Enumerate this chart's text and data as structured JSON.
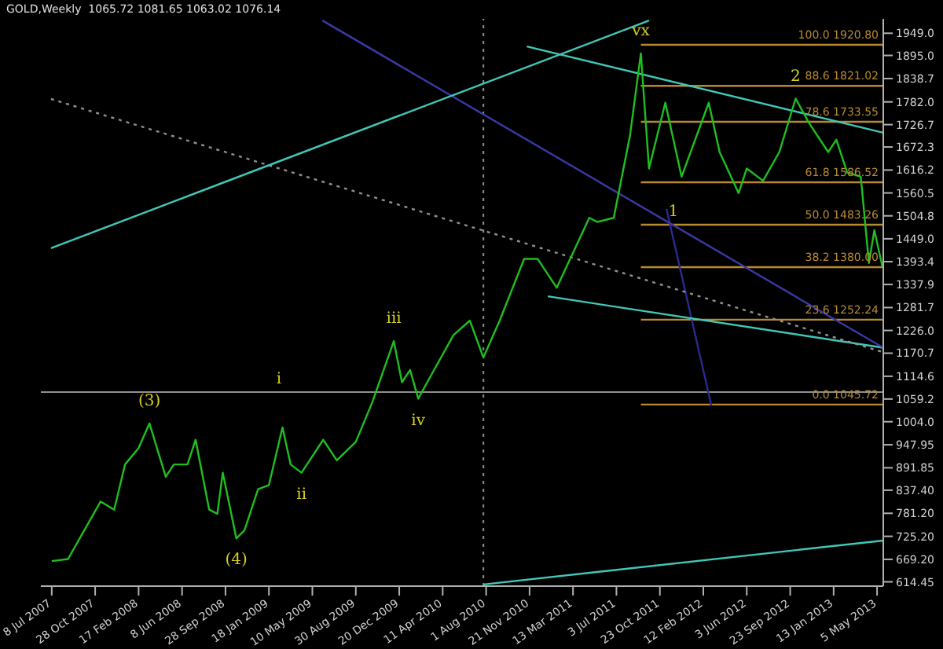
{
  "chart_data": {
    "type": "line",
    "title": "GOLD,Weekly  1065.72 1081.65 1063.02 1076.14",
    "xlim": [
      "2007-06-10",
      "2013-05-21"
    ],
    "ylim": [
      604,
      1984
    ],
    "xticks": [
      {
        "value": "2007-07-08",
        "label": "8 Jul 2007"
      },
      {
        "value": "2007-10-28",
        "label": "28 Oct 2007"
      },
      {
        "value": "2008-02-17",
        "label": "17 Feb 2008"
      },
      {
        "value": "2008-06-08",
        "label": "8 Jun 2008"
      },
      {
        "value": "2008-09-28",
        "label": "28 Sep 2008"
      },
      {
        "value": "2009-01-18",
        "label": "18 Jan 2009"
      },
      {
        "value": "2009-05-10",
        "label": "10 May 2009"
      },
      {
        "value": "2009-08-30",
        "label": "30 Aug 2009"
      },
      {
        "value": "2009-12-20",
        "label": "20 Dec 2009"
      },
      {
        "value": "2010-04-11",
        "label": "11 Apr 2010"
      },
      {
        "value": "2010-08-01",
        "label": "1 Aug 2010"
      },
      {
        "value": "2010-11-21",
        "label": "21 Nov 2010"
      },
      {
        "value": "2011-03-13",
        "label": "13 Mar 2011"
      },
      {
        "value": "2011-07-03",
        "label": "3 Jul 2011"
      },
      {
        "value": "2011-10-23",
        "label": "23 Oct 2011"
      },
      {
        "value": "2012-02-12",
        "label": "12 Feb 2012"
      },
      {
        "value": "2012-06-03",
        "label": "3 Jun 2012"
      },
      {
        "value": "2012-09-23",
        "label": "23 Sep 2012"
      },
      {
        "value": "2013-01-13",
        "label": "13 Jan 2013"
      },
      {
        "value": "2013-05-05",
        "label": "5 May 2013"
      }
    ],
    "yticks": [
      {
        "value": 614.45,
        "label": "614.45"
      },
      {
        "value": 669.2,
        "label": "669.20"
      },
      {
        "value": 725.2,
        "label": "725.20"
      },
      {
        "value": 781.2,
        "label": "781.20"
      },
      {
        "value": 837.4,
        "label": "837.40"
      },
      {
        "value": 891.85,
        "label": "891.85"
      },
      {
        "value": 947.95,
        "label": "947.95"
      },
      {
        "value": 1004,
        "label": "1004.0"
      },
      {
        "value": 1059.2,
        "label": "1059.2"
      },
      {
        "value": 1114.6,
        "label": "1114.6"
      },
      {
        "value": 1170.7,
        "label": "1170.7"
      },
      {
        "value": 1226,
        "label": "1226.0"
      },
      {
        "value": 1281.7,
        "label": "1281.7"
      },
      {
        "value": 1337.9,
        "label": "1337.9"
      },
      {
        "value": 1393.4,
        "label": "1393.4"
      },
      {
        "value": 1449,
        "label": "1449.0"
      },
      {
        "value": 1504.8,
        "label": "1504.8"
      },
      {
        "value": 1560.5,
        "label": "1560.5"
      },
      {
        "value": 1616.2,
        "label": "1616.2"
      },
      {
        "value": 1672.3,
        "label": "1672.3"
      },
      {
        "value": 1726.7,
        "label": "1726.7"
      },
      {
        "value": 1782,
        "label": "1782.0"
      },
      {
        "value": 1838.7,
        "label": "1838.7"
      },
      {
        "value": 1895,
        "label": "1895.0"
      },
      {
        "value": 1949,
        "label": "1949.0"
      }
    ],
    "series": [
      {
        "color": "#1fbf1f",
        "x": [
          "2007-07-08",
          "2007-08-19",
          "2007-09-30",
          "2007-11-11",
          "2007-12-16",
          "2008-01-13",
          "2008-02-17",
          "2008-03-16",
          "2008-04-27",
          "2008-05-18",
          "2008-06-22",
          "2008-07-13",
          "2008-08-17",
          "2008-09-07",
          "2008-09-21",
          "2008-10-26",
          "2008-11-16",
          "2008-12-21",
          "2009-01-18",
          "2009-02-22",
          "2009-03-15",
          "2009-04-12",
          "2009-06-07",
          "2009-07-12",
          "2009-08-30",
          "2009-10-11",
          "2009-12-06",
          "2009-12-27",
          "2010-01-17",
          "2010-02-07",
          "2010-03-14",
          "2010-05-09",
          "2010-06-20",
          "2010-07-25",
          "2010-09-05",
          "2010-11-07",
          "2010-12-12",
          "2011-01-30",
          "2011-04-24",
          "2011-05-15",
          "2011-06-26",
          "2011-08-07",
          "2011-09-04",
          "2011-09-25",
          "2011-11-06",
          "2011-12-18",
          "2012-02-26",
          "2012-03-25",
          "2012-05-13",
          "2012-06-03",
          "2012-07-15",
          "2012-08-26",
          "2012-10-07",
          "2012-11-11",
          "2012-12-30",
          "2013-01-20",
          "2013-02-17",
          "2013-03-24",
          "2013-04-14",
          "2013-04-28",
          "2013-05-19"
        ],
        "values": [
          665,
          670,
          740,
          810,
          790,
          900,
          940,
          1000,
          870,
          900,
          900,
          960,
          790,
          780,
          880,
          720,
          740,
          840,
          850,
          990,
          900,
          880,
          960,
          910,
          955,
          1050,
          1200,
          1100,
          1130,
          1060,
          1120,
          1215,
          1250,
          1160,
          1250,
          1400,
          1400,
          1330,
          1500,
          1490,
          1500,
          1700,
          1900,
          1620,
          1780,
          1600,
          1780,
          1660,
          1560,
          1620,
          1590,
          1660,
          1790,
          1730,
          1660,
          1690,
          1610,
          1600,
          1390,
          1470,
          1380
        ]
      },
      {
        "color": "#40c8b8",
        "x": [
          "2007-07-06",
          "2011-09-25"
        ],
        "values": [
          1426,
          1980
        ]
      },
      {
        "color": "#40c8b8",
        "x": [
          "2010-11-14",
          "2013-05-21"
        ],
        "values": [
          1917,
          1707
        ]
      },
      {
        "color": "#3a3aa8",
        "x": [
          "2009-06-05",
          "2013-05-21"
        ],
        "values": [
          1980,
          1184
        ]
      },
      {
        "color": "#909090",
        "line_style": "dotted",
        "x": [
          "2007-07-06",
          "2013-05-21"
        ],
        "values": [
          1789,
          1173
        ]
      },
      {
        "color": "#40c8b8",
        "x": [
          "2011-01-07",
          "2013-05-21"
        ],
        "values": [
          1309,
          1184
        ]
      },
      {
        "color": "#40c8b8",
        "x": [
          "2010-07-25",
          "2013-05-21"
        ],
        "values": [
          608,
          715
        ]
      },
      {
        "color": "#2a2a90",
        "x": [
          "2011-11-09",
          "2012-03-04"
        ],
        "values": [
          1522,
          1042
        ]
      },
      {
        "name": "100.0  1920.80",
        "color": "#b88a30",
        "x": [
          "2011-09-04",
          "2013-05-21"
        ],
        "values": [
          1920.8,
          1920.8
        ]
      },
      {
        "name": "88.6  1821.02",
        "color": "#b88a30",
        "x": [
          "2011-09-04",
          "2013-05-21"
        ],
        "values": [
          1821.02,
          1821.02
        ]
      },
      {
        "name": "78.6  1733.55",
        "color": "#b88a30",
        "x": [
          "2011-09-04",
          "2013-05-21"
        ],
        "values": [
          1733.55,
          1733.55
        ]
      },
      {
        "name": "61.8  1586.52",
        "color": "#b88a30",
        "x": [
          "2011-09-04",
          "2013-05-21"
        ],
        "values": [
          1586.52,
          1586.52
        ]
      },
      {
        "name": "50.0  1483.26",
        "color": "#b88a30",
        "x": [
          "2011-09-04",
          "2013-05-21"
        ],
        "values": [
          1483.26,
          1483.26
        ]
      },
      {
        "name": "38.2  1380.00",
        "color": "#b88a30",
        "x": [
          "2011-09-04",
          "2013-05-21"
        ],
        "values": [
          1380,
          1380
        ]
      },
      {
        "name": "23.6  1252.24",
        "color": "#b88a30",
        "x": [
          "2011-09-04",
          "2013-05-21"
        ],
        "values": [
          1252.24,
          1252.24
        ]
      },
      {
        "name": "0.0  1045.72",
        "color": "#b88a30",
        "x": [
          "2011-09-04",
          "2013-05-21"
        ],
        "values": [
          1045.72,
          1045.72
        ]
      }
    ],
    "ref_lines": [
      {
        "axis": "x",
        "value": "2010-07-25",
        "color": "#909090",
        "line_style": "dotted"
      },
      {
        "axis": "y",
        "value": 1076.14,
        "color": "#909090"
      }
    ],
    "annotations": [
      {
        "text": "(3)",
        "x": "2008-03-16",
        "y": 1000
      },
      {
        "text": "(4)",
        "x": "2008-10-26",
        "y": 720
      },
      {
        "text": "i",
        "x": "2009-02-13",
        "y": 1076.14
      },
      {
        "text": "ii",
        "x": "2009-04-12",
        "y": 880
      },
      {
        "text": "iii",
        "x": "2009-12-06",
        "y": 1200
      },
      {
        "text": "iv",
        "x": "2010-02-07",
        "y": 1060
      },
      {
        "text": "vx",
        "x": "2011-09-04",
        "y": 1900
      },
      {
        "text": "1",
        "x": "2011-11-27",
        "y": 1483.26
      },
      {
        "text": "2",
        "x": "2012-10-07",
        "y": 1790
      }
    ]
  }
}
